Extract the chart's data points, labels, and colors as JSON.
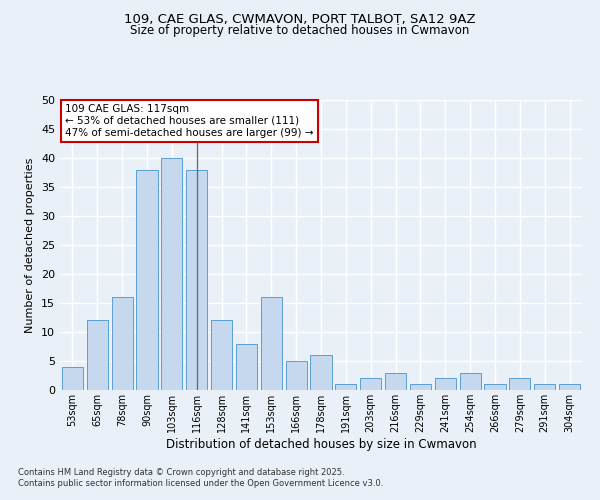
{
  "title_line1": "109, CAE GLAS, CWMAVON, PORT TALBOT, SA12 9AZ",
  "title_line2": "Size of property relative to detached houses in Cwmavon",
  "xlabel": "Distribution of detached houses by size in Cwmavon",
  "ylabel": "Number of detached properties",
  "categories": [
    "53sqm",
    "65sqm",
    "78sqm",
    "90sqm",
    "103sqm",
    "116sqm",
    "128sqm",
    "141sqm",
    "153sqm",
    "166sqm",
    "178sqm",
    "191sqm",
    "203sqm",
    "216sqm",
    "229sqm",
    "241sqm",
    "254sqm",
    "266sqm",
    "279sqm",
    "291sqm",
    "304sqm"
  ],
  "values": [
    4,
    12,
    16,
    38,
    40,
    38,
    12,
    8,
    16,
    5,
    6,
    1,
    2,
    3,
    1,
    2,
    3,
    1,
    2,
    1,
    1
  ],
  "bar_color": "#c5d8ed",
  "bar_edge_color": "#5a9fd4",
  "highlight_index": 5,
  "highlight_line_color": "#666666",
  "annotation_text": "109 CAE GLAS: 117sqm\n← 53% of detached houses are smaller (111)\n47% of semi-detached houses are larger (99) →",
  "annotation_box_color": "#ffffff",
  "annotation_box_edge": "#cc0000",
  "ylim": [
    0,
    50
  ],
  "yticks": [
    0,
    5,
    10,
    15,
    20,
    25,
    30,
    35,
    40,
    45,
    50
  ],
  "bg_color": "#eaf0f8",
  "grid_color": "#ffffff",
  "footer_line1": "Contains HM Land Registry data © Crown copyright and database right 2025.",
  "footer_line2": "Contains public sector information licensed under the Open Government Licence v3.0."
}
